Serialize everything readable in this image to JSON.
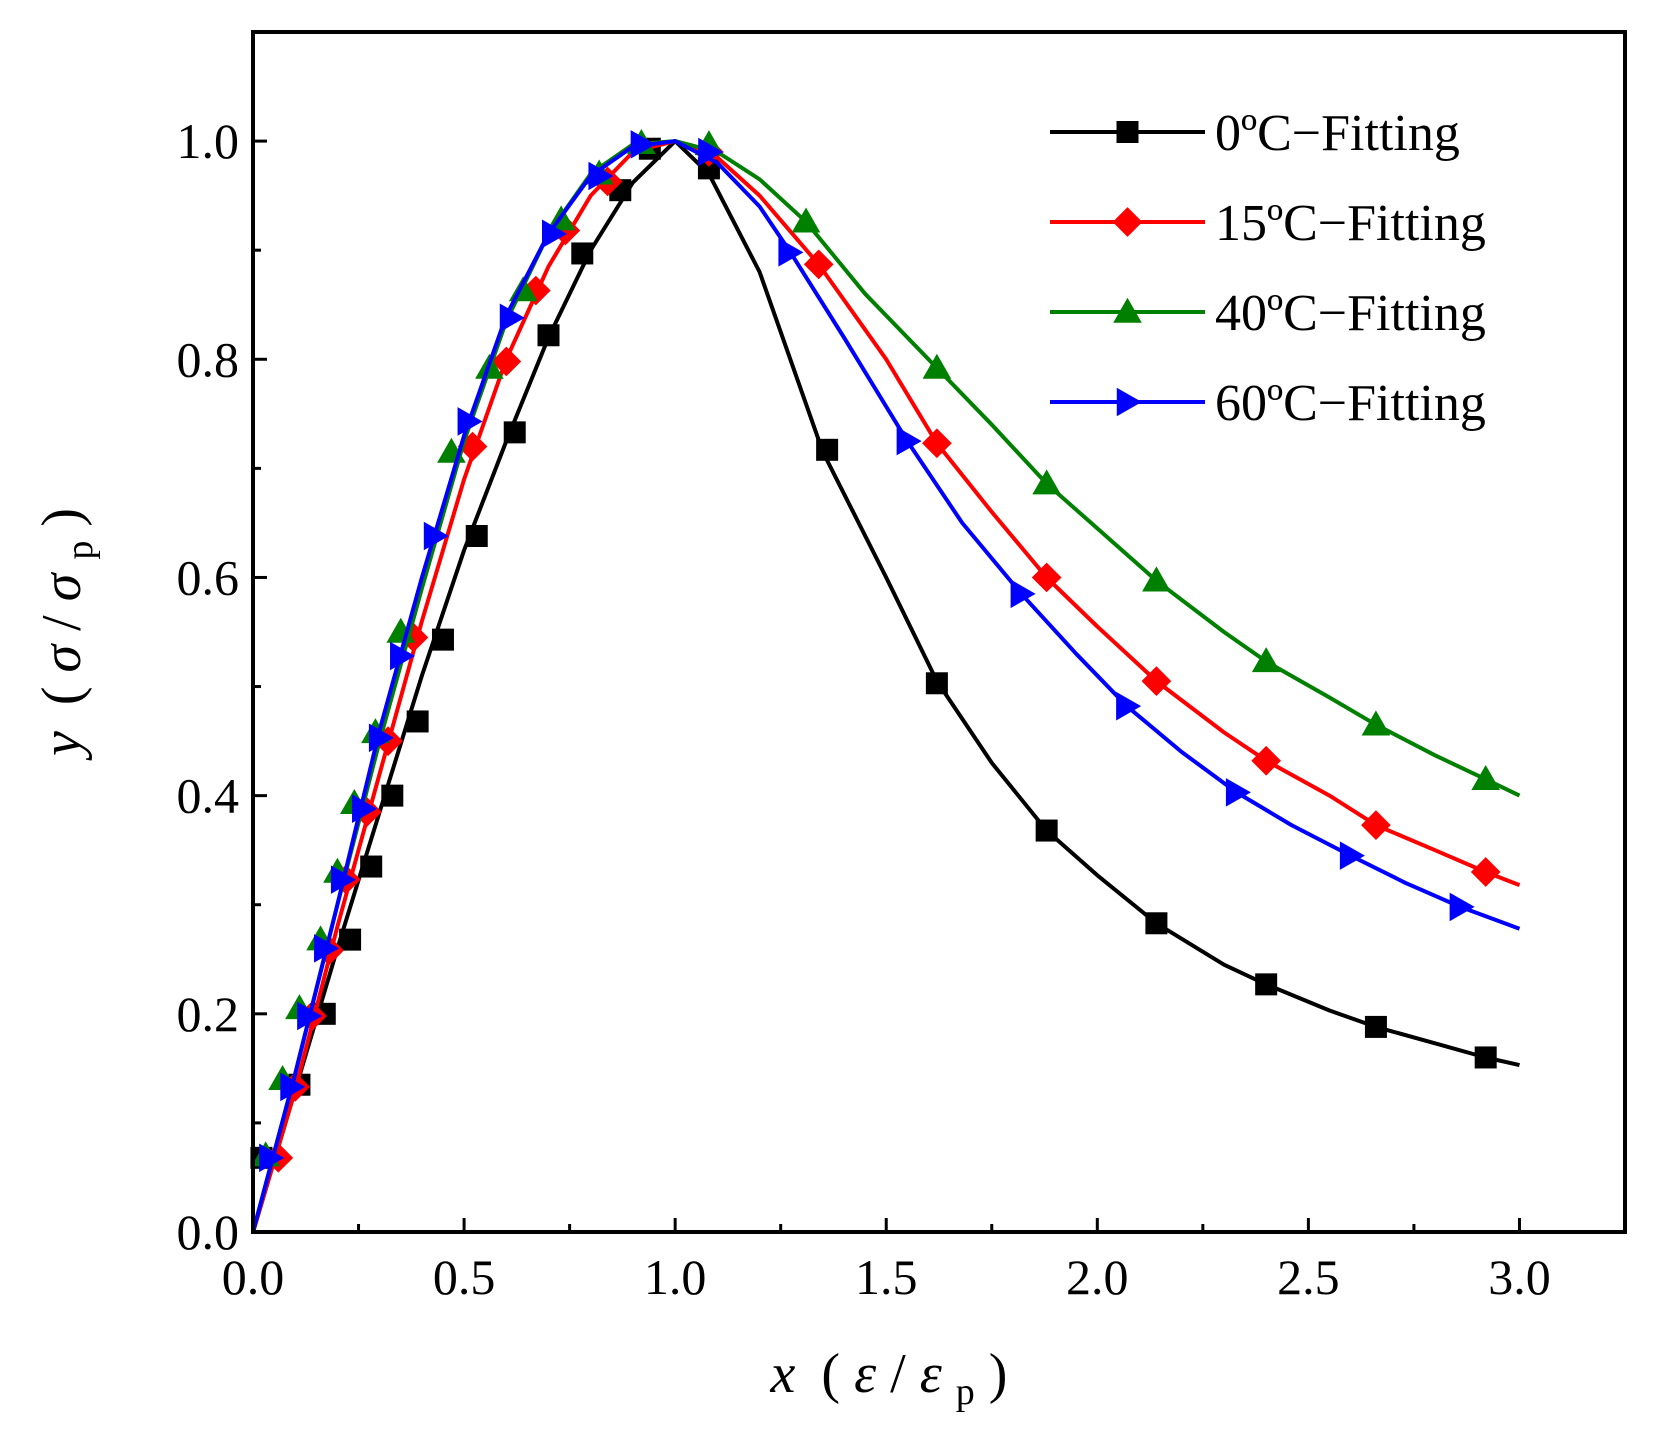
{
  "chart_data": {
    "type": "line",
    "title": "",
    "xlabel": {
      "var": "x",
      "open": "(",
      "num": "ε",
      "slash": "/",
      "den": "ε",
      "sub": "p",
      "close": ")"
    },
    "ylabel": {
      "var": "y",
      "open": "(",
      "num": "σ",
      "slash": "/",
      "den": "σ",
      "sub": "p",
      "close": ")"
    },
    "xlim": [
      0,
      3.25
    ],
    "ylim": [
      0,
      1.1
    ],
    "xticks": [
      0.0,
      0.5,
      1.0,
      1.5,
      2.0,
      2.5,
      3.0
    ],
    "xtick_labels": [
      "0.0",
      "0.5",
      "1.0",
      "1.5",
      "2.0",
      "2.5",
      "3.0"
    ],
    "yticks": [
      0.0,
      0.2,
      0.4,
      0.6,
      0.8,
      1.0
    ],
    "ytick_labels": [
      "0.0",
      "0.2",
      "0.4",
      "0.6",
      "0.8",
      "1.0"
    ],
    "grid": false,
    "legend_position": "top-right",
    "series": [
      {
        "name": "0ºC−Fitting",
        "color": "#000000",
        "marker": "square",
        "curve": [
          [
            0,
            0
          ],
          [
            0.1,
            0.13
          ],
          [
            0.2,
            0.26
          ],
          [
            0.3,
            0.385
          ],
          [
            0.4,
            0.51
          ],
          [
            0.5,
            0.625
          ],
          [
            0.6,
            0.725
          ],
          [
            0.7,
            0.82
          ],
          [
            0.8,
            0.9
          ],
          [
            0.9,
            0.962
          ],
          [
            1.0,
            1.0
          ],
          [
            1.08,
            0.97
          ],
          [
            1.2,
            0.88
          ],
          [
            1.35,
            0.715
          ],
          [
            1.5,
            0.6
          ],
          [
            1.62,
            0.505
          ],
          [
            1.75,
            0.43
          ],
          [
            1.88,
            0.368
          ],
          [
            2.0,
            0.327
          ],
          [
            2.14,
            0.283
          ],
          [
            2.3,
            0.245
          ],
          [
            2.4,
            0.227
          ],
          [
            2.55,
            0.203
          ],
          [
            2.66,
            0.188
          ],
          [
            2.8,
            0.173
          ],
          [
            2.92,
            0.16
          ],
          [
            3.0,
            0.153
          ]
        ],
        "markers": [
          [
            0.02,
            0.068
          ],
          [
            0.11,
            0.135
          ],
          [
            0.17,
            0.2
          ],
          [
            0.23,
            0.268
          ],
          [
            0.28,
            0.335
          ],
          [
            0.33,
            0.4
          ],
          [
            0.39,
            0.468
          ],
          [
            0.45,
            0.543
          ],
          [
            0.53,
            0.638
          ],
          [
            0.62,
            0.733
          ],
          [
            0.7,
            0.822
          ],
          [
            0.78,
            0.897
          ],
          [
            0.87,
            0.955
          ],
          [
            0.94,
            0.993
          ],
          [
            1.08,
            0.975
          ],
          [
            1.36,
            0.717
          ],
          [
            1.62,
            0.503
          ],
          [
            1.88,
            0.368
          ],
          [
            2.14,
            0.283
          ],
          [
            2.4,
            0.227
          ],
          [
            2.66,
            0.188
          ],
          [
            2.92,
            0.16
          ]
        ]
      },
      {
        "name": "15ºC−Fitting",
        "color": "#ff0000",
        "marker": "diamond",
        "curve": [
          [
            0,
            0
          ],
          [
            0.1,
            0.13
          ],
          [
            0.2,
            0.28
          ],
          [
            0.3,
            0.42
          ],
          [
            0.4,
            0.56
          ],
          [
            0.5,
            0.69
          ],
          [
            0.6,
            0.8
          ],
          [
            0.7,
            0.885
          ],
          [
            0.8,
            0.95
          ],
          [
            0.9,
            0.99
          ],
          [
            1.0,
            1.0
          ],
          [
            1.1,
            0.985
          ],
          [
            1.2,
            0.95
          ],
          [
            1.34,
            0.887
          ],
          [
            1.5,
            0.8
          ],
          [
            1.62,
            0.723
          ],
          [
            1.75,
            0.66
          ],
          [
            1.88,
            0.6
          ],
          [
            2.0,
            0.555
          ],
          [
            2.14,
            0.505
          ],
          [
            2.3,
            0.458
          ],
          [
            2.4,
            0.432
          ],
          [
            2.55,
            0.4
          ],
          [
            2.66,
            0.373
          ],
          [
            2.8,
            0.35
          ],
          [
            2.92,
            0.33
          ],
          [
            3.0,
            0.318
          ]
        ],
        "markers": [
          [
            0.06,
            0.068
          ],
          [
            0.1,
            0.133
          ],
          [
            0.14,
            0.198
          ],
          [
            0.18,
            0.258
          ],
          [
            0.22,
            0.323
          ],
          [
            0.27,
            0.385
          ],
          [
            0.32,
            0.45
          ],
          [
            0.38,
            0.545
          ],
          [
            0.52,
            0.72
          ],
          [
            0.6,
            0.798
          ],
          [
            0.67,
            0.863
          ],
          [
            0.74,
            0.918
          ],
          [
            0.84,
            0.963
          ],
          [
            1.08,
            0.99
          ],
          [
            1.34,
            0.887
          ],
          [
            1.62,
            0.723
          ],
          [
            1.88,
            0.6
          ],
          [
            2.14,
            0.505
          ],
          [
            2.4,
            0.432
          ],
          [
            2.66,
            0.373
          ],
          [
            2.92,
            0.33
          ]
        ]
      },
      {
        "name": "40ºC−Fitting",
        "color": "#008000",
        "marker": "triangle-up",
        "curve": [
          [
            0,
            0
          ],
          [
            0.1,
            0.145
          ],
          [
            0.2,
            0.3
          ],
          [
            0.3,
            0.45
          ],
          [
            0.4,
            0.59
          ],
          [
            0.5,
            0.725
          ],
          [
            0.6,
            0.835
          ],
          [
            0.7,
            0.915
          ],
          [
            0.8,
            0.97
          ],
          [
            0.9,
            0.997
          ],
          [
            1.0,
            1.0
          ],
          [
            1.1,
            0.99
          ],
          [
            1.2,
            0.965
          ],
          [
            1.31,
            0.926
          ],
          [
            1.45,
            0.86
          ],
          [
            1.62,
            0.792
          ],
          [
            1.75,
            0.74
          ],
          [
            1.88,
            0.686
          ],
          [
            2.0,
            0.645
          ],
          [
            2.14,
            0.597
          ],
          [
            2.3,
            0.55
          ],
          [
            2.4,
            0.523
          ],
          [
            2.55,
            0.49
          ],
          [
            2.66,
            0.465
          ],
          [
            2.8,
            0.437
          ],
          [
            2.92,
            0.415
          ],
          [
            3.0,
            0.4
          ]
        ],
        "markers": [
          [
            0.03,
            0.07
          ],
          [
            0.07,
            0.14
          ],
          [
            0.11,
            0.205
          ],
          [
            0.16,
            0.268
          ],
          [
            0.2,
            0.33
          ],
          [
            0.24,
            0.393
          ],
          [
            0.29,
            0.458
          ],
          [
            0.35,
            0.55
          ],
          [
            0.47,
            0.715
          ],
          [
            0.56,
            0.792
          ],
          [
            0.64,
            0.863
          ],
          [
            0.73,
            0.928
          ],
          [
            0.82,
            0.97
          ],
          [
            0.92,
            0.998
          ],
          [
            1.08,
            0.997
          ],
          [
            1.31,
            0.926
          ],
          [
            1.62,
            0.792
          ],
          [
            1.88,
            0.686
          ],
          [
            2.14,
            0.597
          ],
          [
            2.4,
            0.523
          ],
          [
            2.66,
            0.465
          ],
          [
            2.92,
            0.415
          ]
        ]
      },
      {
        "name": "60ºC−Fitting",
        "color": "#0000ff",
        "marker": "triangle-right",
        "curve": [
          [
            0,
            0
          ],
          [
            0.1,
            0.145
          ],
          [
            0.2,
            0.3
          ],
          [
            0.3,
            0.46
          ],
          [
            0.4,
            0.6
          ],
          [
            0.5,
            0.73
          ],
          [
            0.6,
            0.84
          ],
          [
            0.7,
            0.915
          ],
          [
            0.8,
            0.968
          ],
          [
            0.9,
            0.995
          ],
          [
            1.0,
            1.0
          ],
          [
            1.1,
            0.98
          ],
          [
            1.2,
            0.94
          ],
          [
            1.27,
            0.9
          ],
          [
            1.4,
            0.82
          ],
          [
            1.55,
            0.725
          ],
          [
            1.68,
            0.65
          ],
          [
            1.82,
            0.585
          ],
          [
            1.95,
            0.53
          ],
          [
            2.07,
            0.482
          ],
          [
            2.2,
            0.44
          ],
          [
            2.33,
            0.403
          ],
          [
            2.46,
            0.373
          ],
          [
            2.6,
            0.345
          ],
          [
            2.73,
            0.32
          ],
          [
            2.86,
            0.298
          ],
          [
            3.0,
            0.278
          ]
        ],
        "markers": [
          [
            0.04,
            0.068
          ],
          [
            0.09,
            0.133
          ],
          [
            0.13,
            0.198
          ],
          [
            0.17,
            0.26
          ],
          [
            0.21,
            0.323
          ],
          [
            0.26,
            0.388
          ],
          [
            0.3,
            0.453
          ],
          [
            0.35,
            0.528
          ],
          [
            0.43,
            0.638
          ],
          [
            0.51,
            0.743
          ],
          [
            0.61,
            0.838
          ],
          [
            0.71,
            0.915
          ],
          [
            0.82,
            0.968
          ],
          [
            0.92,
            0.997
          ],
          [
            1.08,
            0.99
          ],
          [
            1.27,
            0.898
          ],
          [
            1.55,
            0.725
          ],
          [
            1.82,
            0.585
          ],
          [
            2.07,
            0.482
          ],
          [
            2.33,
            0.403
          ],
          [
            2.6,
            0.345
          ],
          [
            2.86,
            0.298
          ]
        ]
      }
    ]
  }
}
